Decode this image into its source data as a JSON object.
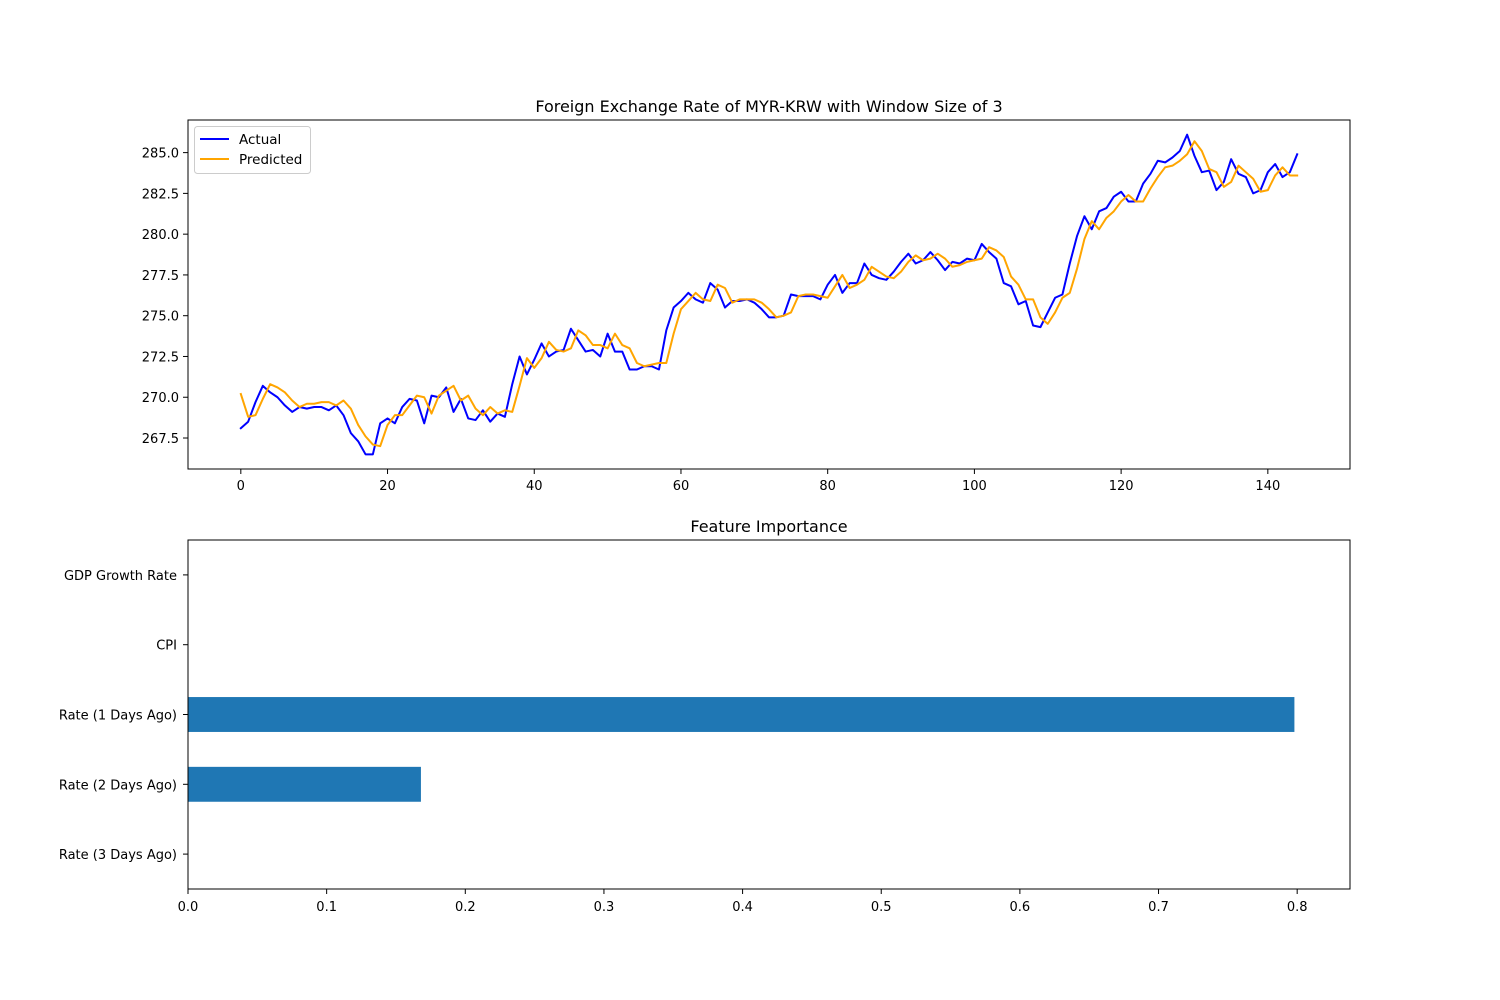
{
  "chart_data": [
    {
      "type": "line",
      "title": "Foreign Exchange Rate of MYR-KRW with Window Size of 3",
      "xlabel": "",
      "ylabel": "",
      "xlim": [
        -7.2,
        151.2
      ],
      "ylim": [
        265.6,
        287.0
      ],
      "xticks": [
        0,
        20,
        40,
        60,
        80,
        100,
        120,
        140
      ],
      "xtick_labels": [
        "0",
        "20",
        "40",
        "60",
        "80",
        "100",
        "120",
        "140"
      ],
      "yticks": [
        267.5,
        270.0,
        272.5,
        275.0,
        277.5,
        280.0,
        282.5,
        285.0
      ],
      "ytick_labels": [
        "267.5",
        "270.0",
        "272.5",
        "275.0",
        "277.5",
        "280.0",
        "282.5",
        "285.0"
      ],
      "grid": false,
      "legend": "top-left",
      "series": [
        {
          "name": "Actual",
          "color": "#0000ff",
          "x_start": 0,
          "values": [
            268.1,
            268.5,
            269.7,
            270.7,
            270.3,
            270.0,
            269.5,
            269.1,
            269.4,
            269.3,
            269.4,
            269.4,
            269.2,
            269.5,
            268.9,
            267.8,
            267.3,
            266.5,
            266.5,
            268.4,
            268.7,
            268.4,
            269.4,
            269.9,
            269.8,
            268.4,
            270.1,
            270.0,
            270.6,
            269.1,
            269.9,
            268.7,
            268.6,
            269.2,
            268.5,
            269.0,
            268.8,
            270.8,
            272.5,
            271.4,
            272.3,
            273.3,
            272.5,
            272.8,
            272.9,
            274.2,
            273.5,
            272.8,
            272.9,
            272.5,
            273.9,
            272.8,
            272.8,
            271.7,
            271.7,
            271.9,
            271.9,
            271.7,
            274.1,
            275.5,
            275.9,
            276.4,
            276.0,
            275.8,
            277.0,
            276.6,
            275.5,
            275.9,
            275.9,
            276.0,
            275.8,
            275.4,
            274.9,
            274.9,
            275.0,
            276.3,
            276.2,
            276.2,
            276.2,
            276.0,
            276.9,
            277.5,
            276.4,
            277.0,
            277.0,
            278.2,
            277.5,
            277.3,
            277.2,
            277.7,
            278.3,
            278.8,
            278.2,
            278.4,
            278.9,
            278.4,
            277.8,
            278.3,
            278.2,
            278.5,
            278.4,
            279.4,
            278.9,
            278.5,
            277.0,
            276.8,
            275.7,
            275.9,
            274.4,
            274.3,
            275.2,
            276.1,
            276.3,
            278.2,
            279.9,
            281.1,
            280.3,
            281.4,
            281.6,
            282.3,
            282.6,
            282.0,
            282.0,
            283.1,
            283.7,
            284.5,
            284.4,
            284.7,
            285.1,
            286.1,
            284.8,
            283.8,
            283.9,
            282.7,
            283.2,
            284.6,
            283.7,
            283.5,
            282.5,
            282.7,
            283.8,
            284.3,
            283.5,
            283.8,
            284.9
          ]
        },
        {
          "name": "Predicted",
          "color": "#ffa500",
          "x_start": 0,
          "values": [
            270.2,
            268.8,
            268.9,
            269.9,
            270.8,
            270.6,
            270.3,
            269.8,
            269.4,
            269.6,
            269.6,
            269.7,
            269.7,
            269.5,
            269.8,
            269.3,
            268.3,
            267.6,
            267.1,
            267.0,
            268.3,
            268.9,
            268.9,
            269.5,
            270.1,
            270.0,
            269.0,
            270.1,
            270.4,
            270.7,
            269.8,
            270.1,
            269.3,
            268.9,
            269.4,
            269.0,
            269.2,
            269.1,
            270.7,
            272.4,
            271.8,
            272.4,
            273.4,
            272.9,
            272.8,
            273.0,
            274.1,
            273.8,
            273.2,
            273.2,
            273.0,
            273.9,
            273.2,
            273.0,
            272.1,
            271.9,
            272.0,
            272.1,
            272.1,
            273.9,
            275.4,
            275.9,
            276.4,
            276.0,
            275.9,
            276.9,
            276.7,
            275.8,
            276.0,
            276.0,
            276.0,
            275.8,
            275.4,
            274.9,
            275.0,
            275.2,
            276.2,
            276.3,
            276.3,
            276.2,
            276.1,
            276.8,
            277.5,
            276.7,
            276.9,
            277.2,
            278.0,
            277.7,
            277.4,
            277.3,
            277.7,
            278.3,
            278.7,
            278.4,
            278.5,
            278.8,
            278.5,
            278.0,
            278.1,
            278.3,
            278.4,
            278.5,
            279.2,
            279.0,
            278.6,
            277.4,
            276.9,
            276.0,
            276.0,
            274.9,
            274.5,
            275.2,
            276.1,
            276.4,
            277.9,
            279.7,
            280.8,
            280.3,
            281.0,
            281.4,
            282.0,
            282.4,
            282.0,
            282.0,
            282.8,
            283.5,
            284.1,
            284.2,
            284.5,
            284.9,
            285.7,
            285.1,
            284.0,
            283.8,
            282.9,
            283.2,
            284.2,
            283.8,
            283.4,
            282.6,
            282.7,
            283.6,
            284.1,
            283.6,
            283.6
          ]
        }
      ]
    },
    {
      "type": "bar",
      "orientation": "horizontal",
      "title": "Feature Importance",
      "xlabel": "",
      "ylabel": "",
      "xlim": [
        0.0,
        0.8381
      ],
      "xticks": [
        0.0,
        0.1,
        0.2,
        0.3,
        0.4,
        0.5,
        0.6,
        0.7,
        0.8
      ],
      "xtick_labels": [
        "0.0",
        "0.1",
        "0.2",
        "0.3",
        "0.4",
        "0.5",
        "0.6",
        "0.7",
        "0.8"
      ],
      "grid": false,
      "color": "#1f77b4",
      "categories": [
        "GDP Growth Rate",
        "CPI",
        "Rate (1 Days Ago)",
        "Rate (2 Days Ago)",
        "Rate (3 Days Ago)"
      ],
      "values": [
        0.0,
        0.0,
        0.798,
        0.168,
        0.0
      ]
    }
  ]
}
